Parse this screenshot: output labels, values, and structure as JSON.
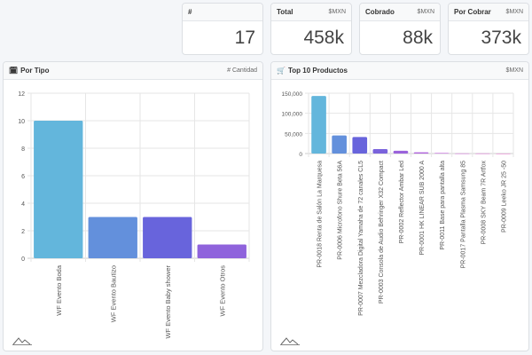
{
  "kpis": [
    {
      "title": "#",
      "unit": "",
      "value": "17"
    },
    {
      "title": "Total",
      "unit": "$MXN",
      "value": "458k"
    },
    {
      "title": "Cobrado",
      "unit": "$MXN",
      "value": "88k"
    },
    {
      "title": "Por Cobrar",
      "unit": "$MXN",
      "value": "373k"
    }
  ],
  "panels": {
    "left": {
      "title": "Por Tipo",
      "icon": "calendar-icon",
      "unit": "# Cantidad"
    },
    "right": {
      "title": "Top 10 Productos",
      "icon": "shopping-cart-icon",
      "unit": "$MXN"
    }
  },
  "chart_data": [
    {
      "type": "bar",
      "categories": [
        "WF Evento Boda",
        "WF Evento Bautizo",
        "WF Evento Baby shower",
        "WF Evento Otros"
      ],
      "values": [
        10,
        3,
        3,
        1
      ],
      "ylim": [
        0,
        12
      ],
      "yticks": [
        "0",
        "2",
        "4",
        "6",
        "8",
        "10",
        "12"
      ],
      "grid": true,
      "colors": [
        "#63b6dc",
        "#6390dc",
        "#6864dc",
        "#8f63dc"
      ]
    },
    {
      "type": "bar",
      "categories": [
        "PR-0018 Renta de Salón La Marquesa",
        "PR-0006 Microfono Shure Beta 56A",
        "PR-0007 Mezcladora Digital Yamaha de 72 canales CL5",
        "PR-0003 Consola de Audio Behringer X32 Compact",
        "PR-0002 Reflector Ambar Led",
        "PR-0001 HK LINEAR SUB 2000 A",
        "PR-0011 Base para pantalla alta",
        "PR-0017 Pantalla Plasma Samsung 85",
        "PR-0008 SKY Beam 7R Artfox",
        "PR-0009 Leeko JR 25 -50"
      ],
      "values": [
        143000,
        45000,
        41000,
        11000,
        7000,
        3000,
        1500,
        300,
        150,
        80
      ],
      "ylim": [
        0,
        150000
      ],
      "yticks": [
        "0",
        "50,000",
        "100,000",
        "150,000"
      ],
      "grid": true,
      "colors": [
        "#63b6dc",
        "#6390dc",
        "#6864dc",
        "#7a63dc",
        "#9a63dc",
        "#b063dc",
        "#c463dc",
        "#d063d8",
        "#d863cc",
        "#dc63c0"
      ]
    }
  ]
}
